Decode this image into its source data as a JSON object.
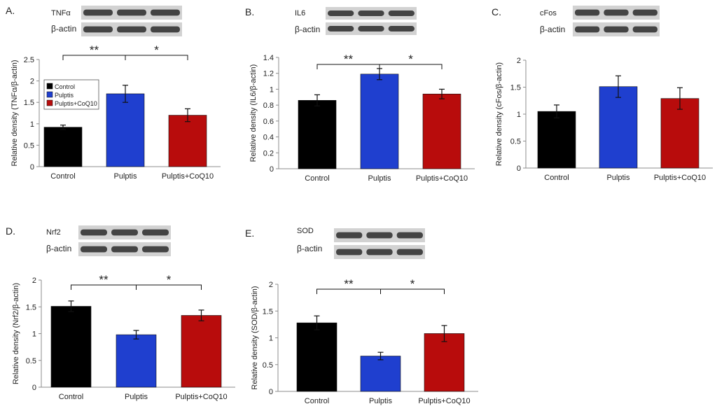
{
  "colors": {
    "control": "#000000",
    "pulptis": "#1f3fcf",
    "coq10": "#b80c0c",
    "axis": "#8c8c8c"
  },
  "blot_labels": {
    "actin": "β-actin"
  },
  "chart_data": [
    {
      "panel": "A.",
      "type": "bar",
      "protein": "TNFα",
      "ylabel": "Relative density (TNFα/β-actin)",
      "categories": [
        "Control",
        "Pulptis",
        "Pulptis+CoQ10"
      ],
      "values": [
        0.92,
        1.7,
        1.2
      ],
      "errors": [
        0.05,
        0.2,
        0.15
      ],
      "ylim": [
        0,
        2.5
      ],
      "ticks": [
        "0",
        "0.5",
        "1",
        "1.5",
        "2",
        "2.5"
      ],
      "legend": [
        "Control",
        "Pulptis",
        "Pulptis+CoQ10"
      ],
      "legend_position": "top-left",
      "significance": [
        "**",
        "*"
      ]
    },
    {
      "panel": "B.",
      "type": "bar",
      "protein": "IL6",
      "ylabel": "Relative density (IL6/β-actin)",
      "categories": [
        "Control",
        "Pulptis",
        "Pulptis+CoQ10"
      ],
      "values": [
        0.86,
        1.19,
        0.94
      ],
      "errors": [
        0.07,
        0.07,
        0.06
      ],
      "ylim": [
        0,
        1.4
      ],
      "ticks": [
        "0",
        "0.2",
        "0.4",
        "0.6",
        "0.8",
        "1",
        "1.2",
        "1.4"
      ],
      "significance": [
        "**",
        "*"
      ]
    },
    {
      "panel": "C.",
      "type": "bar",
      "protein": "cFos",
      "ylabel": "Relative density (cFos/β-actin)",
      "categories": [
        "Control",
        "Pulptis",
        "Pulptis+CoQ10"
      ],
      "values": [
        1.05,
        1.51,
        1.29
      ],
      "errors": [
        0.12,
        0.2,
        0.2
      ],
      "ylim": [
        0,
        2
      ],
      "ticks": [
        "0",
        "0.5",
        "1",
        "1.5",
        "2"
      ],
      "significance": []
    },
    {
      "panel": "D.",
      "type": "bar",
      "protein": "Nrf2",
      "ylabel": "Relative density (Nrf2/β-actin)",
      "categories": [
        "Control",
        "Pulptis",
        "Pulptis+CoQ10"
      ],
      "values": [
        1.51,
        0.98,
        1.34
      ],
      "errors": [
        0.1,
        0.08,
        0.1
      ],
      "ylim": [
        0,
        2
      ],
      "ticks": [
        "0",
        "0.5",
        "1",
        "1.5",
        "2"
      ],
      "significance": [
        "**",
        "*"
      ]
    },
    {
      "panel": "E.",
      "type": "bar",
      "protein": "SOD",
      "ylabel": "Relative density (SOD/β-actin)",
      "categories": [
        "Control",
        "Pulptis",
        "Pulptis+CoQ10"
      ],
      "values": [
        1.28,
        0.66,
        1.08
      ],
      "errors": [
        0.13,
        0.07,
        0.15
      ],
      "ylim": [
        0,
        2
      ],
      "ticks": [
        "0",
        "0.5",
        "1",
        "1.5",
        "2"
      ],
      "significance": [
        "**",
        "*"
      ]
    }
  ]
}
